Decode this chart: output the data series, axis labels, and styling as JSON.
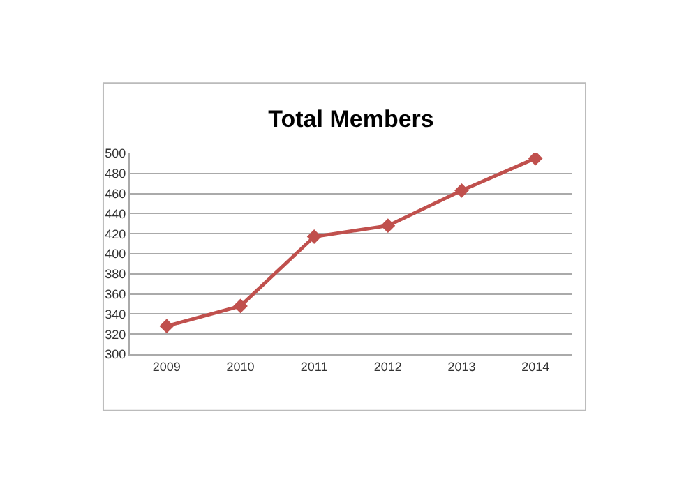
{
  "chart_data": {
    "type": "line",
    "title": "Total Members",
    "categories": [
      "2009",
      "2010",
      "2011",
      "2012",
      "2013",
      "2014"
    ],
    "series": [
      {
        "color": "#c0504d",
        "values": [
          328,
          348,
          417,
          428,
          463,
          495
        ]
      }
    ],
    "ylim": [
      300,
      500
    ],
    "yticks": [
      300,
      320,
      340,
      360,
      380,
      400,
      420,
      440,
      460,
      480,
      500
    ],
    "grid": "y",
    "legend": false,
    "marker": "diamond",
    "line_style": "solid"
  }
}
